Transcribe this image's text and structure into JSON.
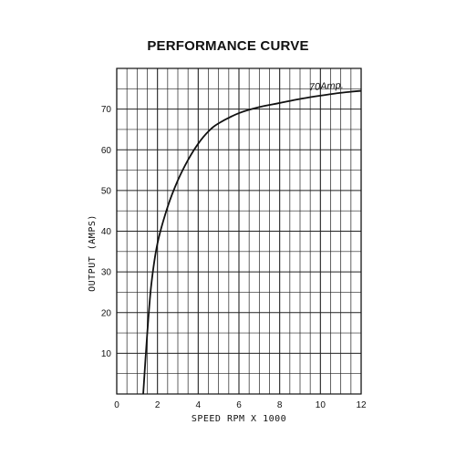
{
  "chart_data": {
    "type": "line",
    "title": "PERFORMANCE CURVE",
    "xlabel": "SPEED RPM X 1000",
    "ylabel": "OUTPUT (AMPS)",
    "xlim": [
      0,
      12
    ],
    "ylim": [
      0,
      80
    ],
    "x_ticks": [
      "0",
      "2",
      "4",
      "6",
      "8",
      "10",
      "12"
    ],
    "y_ticks": [
      "10",
      "20",
      "30",
      "40",
      "50",
      "60",
      "70"
    ],
    "grid": true,
    "series": [
      {
        "x": [
          1.3,
          1.5,
          1.7,
          2.0,
          2.5,
          3.0,
          3.5,
          4.0,
          4.5,
          5.0,
          6.0,
          7.0,
          8.0,
          9.0,
          10.0,
          11.0,
          12.0
        ],
        "y": [
          0,
          15,
          27,
          37,
          46,
          52.5,
          57.5,
          61.5,
          64.5,
          66.5,
          69,
          70.5,
          71.5,
          72.5,
          73.3,
          74,
          74.5
        ]
      }
    ],
    "annotations": [
      {
        "text": "70Amp.",
        "x": 10.3,
        "y": 74.2
      }
    ],
    "colors": {
      "line": "#111111",
      "grid": "#222222"
    }
  }
}
